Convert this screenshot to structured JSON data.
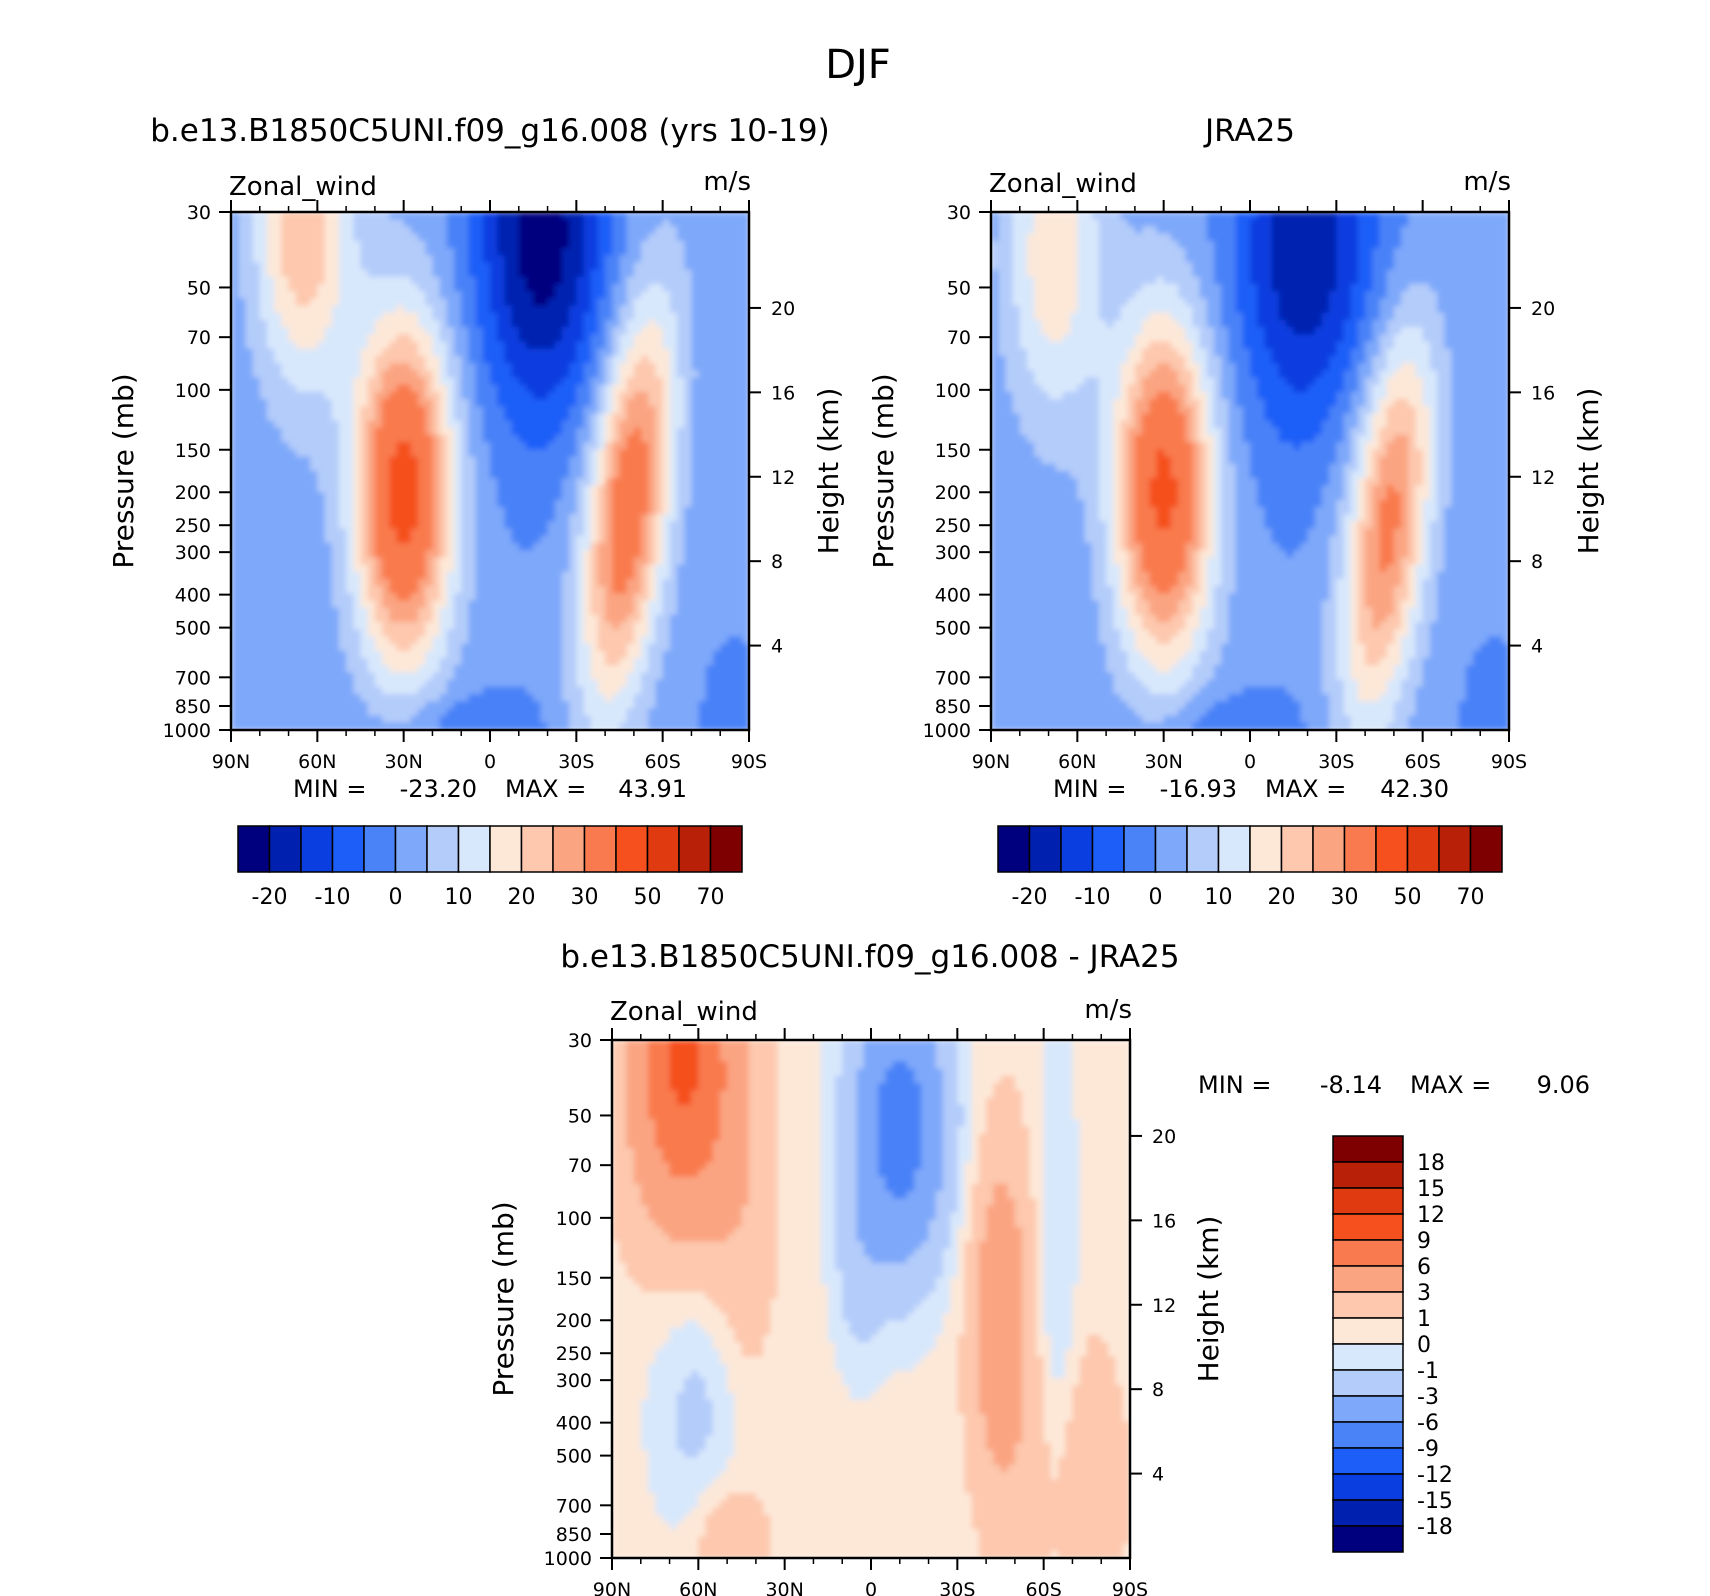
{
  "figure_title": "DJF",
  "panels": [
    {
      "id": "model",
      "title": "b.e13.B1850C5UNI.f09_g16.008 (yrs 10-19)",
      "left_string": "Zonal_wind",
      "right_string": "m/s",
      "min_label": "MIN =",
      "min_value": "-23.20",
      "max_label": "MAX =",
      "max_value": "43.91"
    },
    {
      "id": "obs",
      "title": "JRA25",
      "left_string": "Zonal_wind",
      "right_string": "m/s",
      "min_label": "MIN =",
      "min_value": "-16.93",
      "max_label": "MAX =",
      "max_value": "42.30"
    },
    {
      "id": "diff",
      "title": "b.e13.B1850C5UNI.f09_g16.008 - JRA25",
      "left_string": "Zonal_wind",
      "right_string": "m/s",
      "min_label": "MIN =",
      "min_value": "-8.14",
      "max_label": "MAX =",
      "max_value": "9.06"
    }
  ],
  "chart_data": [
    {
      "type": "heatmap",
      "title": "b.e13.B1850C5UNI.f09_g16.008 (yrs 10-19)",
      "variable": "Zonal_wind",
      "units": "m/s",
      "xlabel": "",
      "ylabel": "Pressure (mb)",
      "y2label": "Height (km)",
      "x_ticks": [
        "90N",
        "60N",
        "30N",
        "0",
        "30S",
        "60S",
        "90S"
      ],
      "x_range": [
        -90,
        90
      ],
      "y_ticks": [
        "30",
        "50",
        "70",
        "100",
        "150",
        "200",
        "250",
        "300",
        "400",
        "500",
        "700",
        "850",
        "1000"
      ],
      "y_range_mb": [
        1000,
        30
      ],
      "y2_ticks": [
        "4",
        "8",
        "12",
        "16",
        "20"
      ],
      "min": -23.2,
      "max": 43.91,
      "colorbar_labels": [
        "-20",
        "-10",
        "0",
        "10",
        "20",
        "30",
        "50",
        "70"
      ],
      "jets": [
        {
          "lat": 30,
          "p_mb": 200,
          "peak": 43.9
        },
        {
          "lat": -48,
          "p_mb": 220,
          "peak": 36
        },
        {
          "lat": 65,
          "p_mb": 32,
          "peak": 24
        },
        {
          "lat": -18,
          "p_mb": 35,
          "peak": -23.2
        }
      ]
    },
    {
      "type": "heatmap",
      "title": "JRA25",
      "variable": "Zonal_wind",
      "units": "m/s",
      "xlabel": "",
      "ylabel": "Pressure (mb)",
      "y2label": "Height (km)",
      "x_ticks": [
        "90N",
        "60N",
        "30N",
        "0",
        "30S",
        "60S",
        "90S"
      ],
      "x_range": [
        -90,
        90
      ],
      "y_ticks": [
        "30",
        "50",
        "70",
        "100",
        "150",
        "200",
        "250",
        "300",
        "400",
        "500",
        "700",
        "850",
        "1000"
      ],
      "y_range_mb": [
        1000,
        30
      ],
      "y2_ticks": [
        "4",
        "8",
        "12",
        "16",
        "20"
      ],
      "min": -16.93,
      "max": 42.3,
      "colorbar_labels": [
        "-20",
        "-10",
        "0",
        "10",
        "20",
        "30",
        "50",
        "70"
      ],
      "jets": [
        {
          "lat": 30,
          "p_mb": 200,
          "peak": 42.3
        },
        {
          "lat": -48,
          "p_mb": 250,
          "peak": 32
        },
        {
          "lat": 68,
          "p_mb": 40,
          "peak": 18
        },
        {
          "lat": -18,
          "p_mb": 40,
          "peak": -16.9
        }
      ]
    },
    {
      "type": "heatmap",
      "title": "b.e13.B1850C5UNI.f09_g16.008 - JRA25",
      "variable": "Zonal_wind",
      "units": "m/s",
      "xlabel": "",
      "ylabel": "Pressure (mb)",
      "y2label": "Height (km)",
      "x_ticks": [
        "90N",
        "60N",
        "30N",
        "0",
        "30S",
        "60S",
        "90S"
      ],
      "x_range": [
        -90,
        90
      ],
      "y_ticks": [
        "30",
        "50",
        "70",
        "100",
        "150",
        "200",
        "250",
        "300",
        "400",
        "500",
        "700",
        "850",
        "1000"
      ],
      "y_range_mb": [
        1000,
        30
      ],
      "y2_ticks": [
        "4",
        "8",
        "12",
        "16",
        "20"
      ],
      "min": -8.14,
      "max": 9.06,
      "colorbar_labels": [
        "18",
        "15",
        "12",
        "9",
        "6",
        "3",
        "1",
        "0",
        "-1",
        "-3",
        "-6",
        "-9",
        "-12",
        "-15",
        "-18"
      ],
      "anomalies": [
        {
          "lat": 65,
          "p_mb": 35,
          "value": 9.06
        },
        {
          "lat": -45,
          "p_mb": 200,
          "value": 5
        },
        {
          "lat": -10,
          "p_mb": 55,
          "value": -8.14
        },
        {
          "lat": 60,
          "p_mb": 350,
          "value": -2
        },
        {
          "lat": -70,
          "p_mb": 600,
          "value": 2
        }
      ]
    }
  ],
  "colors": {
    "abs_scale": [
      "#00007f",
      "#0020b0",
      "#0a3ee0",
      "#1e5ef8",
      "#4a82f8",
      "#7ea8fa",
      "#b4ccfa",
      "#d8e8fc",
      "#fde8d8",
      "#fdc8ae",
      "#fba482",
      "#f97a4e",
      "#f5501e",
      "#e03a10",
      "#b82008",
      "#7f0000"
    ],
    "diff_scale": [
      "#7f0000",
      "#b82008",
      "#e03a10",
      "#f5501e",
      "#f97a4e",
      "#fba482",
      "#fdc8ae",
      "#fde8d8",
      "#d8e8fc",
      "#b4ccfa",
      "#7ea8fa",
      "#4a82f8",
      "#1e5ef8",
      "#0a3ee0",
      "#0020b0",
      "#00007f"
    ]
  }
}
